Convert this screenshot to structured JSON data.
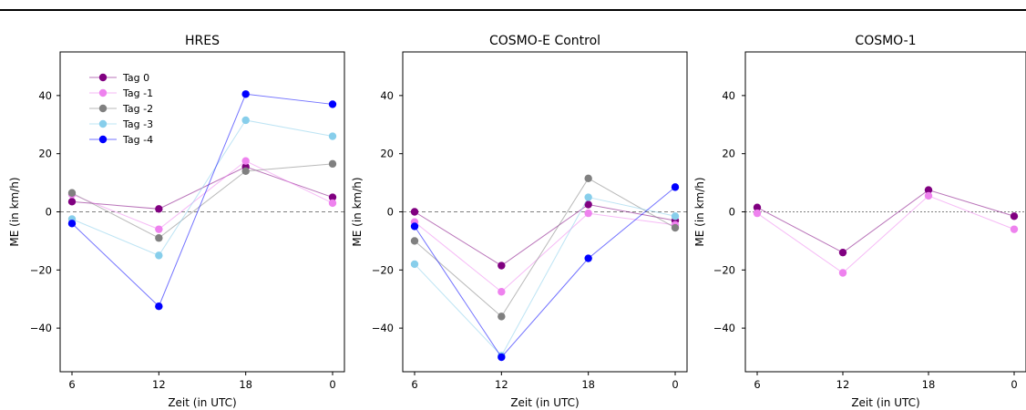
{
  "colors": {
    "Tag 0": "#800080",
    "Tag -1": "#ee82ee",
    "Tag -2": "#808080",
    "Tag -3": "#87ceeb",
    "Tag -4": "#0000ff"
  },
  "chart_data": [
    {
      "type": "line",
      "title": "HRES",
      "xlabel": "Zeit (in UTC)",
      "ylabel": "ME (in km/h)",
      "categories": [
        "6",
        "12",
        "18",
        "0"
      ],
      "ylim": [
        -55,
        55
      ],
      "yticks": [
        -40,
        -20,
        0,
        20,
        40
      ],
      "reference_line": 0,
      "legend": "top-left",
      "series": [
        {
          "name": "Tag 0",
          "values": [
            3.5,
            1,
            15.5,
            5
          ]
        },
        {
          "name": "Tag -1",
          "values": [
            6,
            -6,
            17.5,
            3
          ]
        },
        {
          "name": "Tag -2",
          "values": [
            6.5,
            -9,
            14,
            16.5
          ]
        },
        {
          "name": "Tag -3",
          "values": [
            -2.5,
            -15,
            31.5,
            26
          ]
        },
        {
          "name": "Tag -4",
          "values": [
            -4,
            -32.5,
            40.5,
            37
          ]
        }
      ]
    },
    {
      "type": "line",
      "title": "COSMO-E Control",
      "xlabel": "Zeit (in UTC)",
      "ylabel": "ME (in km/h)",
      "categories": [
        "6",
        "12",
        "18",
        "0"
      ],
      "ylim": [
        -55,
        55
      ],
      "yticks": [
        -40,
        -20,
        0,
        20,
        40
      ],
      "reference_line": 0,
      "series": [
        {
          "name": "Tag 0",
          "values": [
            0,
            -18.5,
            2.5,
            -3
          ]
        },
        {
          "name": "Tag -1",
          "values": [
            -3.5,
            -27.5,
            -0.5,
            -4.5
          ]
        },
        {
          "name": "Tag -2",
          "values": [
            -10,
            -36,
            11.5,
            -5.5
          ]
        },
        {
          "name": "Tag -3",
          "values": [
            -18,
            -49.5,
            5,
            -1.5
          ]
        },
        {
          "name": "Tag -4",
          "values": [
            -5,
            -50,
            -16,
            8.5
          ]
        }
      ]
    },
    {
      "type": "line",
      "title": "COSMO-1",
      "xlabel": "Zeit (in UTC)",
      "ylabel": "ME (in km/h)",
      "categories": [
        "6",
        "12",
        "18",
        "0"
      ],
      "ylim": [
        -55,
        55
      ],
      "yticks": [
        -40,
        -20,
        0,
        20,
        40
      ],
      "reference_line": 0,
      "series": [
        {
          "name": "Tag 0",
          "values": [
            1.5,
            -14,
            7.5,
            -1.5
          ]
        },
        {
          "name": "Tag -1",
          "values": [
            -0.5,
            -21,
            5.5,
            -6
          ]
        }
      ]
    }
  ]
}
